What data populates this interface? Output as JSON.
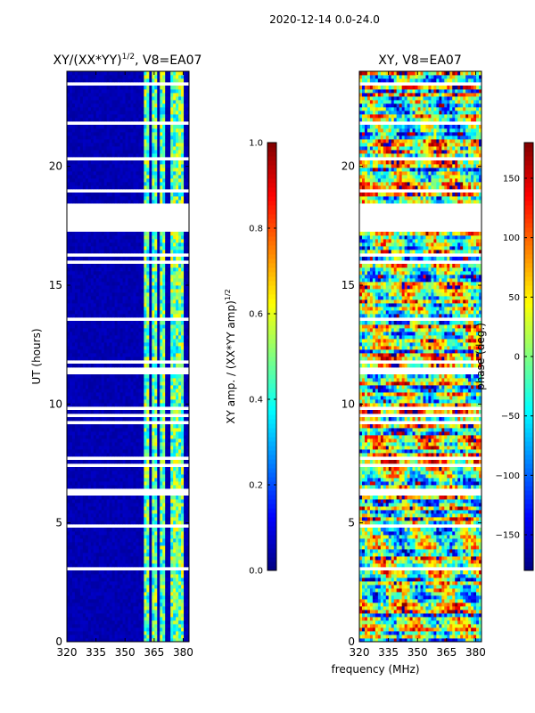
{
  "figure": {
    "suptitle": "2020-12-14 0.0-24.0",
    "xlabel": "frequency (MHz)"
  },
  "chart_data": [
    {
      "type": "heatmap",
      "title": "XY/(XX*YY)",
      "title_sup": "1/2",
      "title_suffix": ", V8=EA07",
      "xlabel": "",
      "ylabel": "UT (hours)",
      "xlim": [
        320,
        383
      ],
      "ylim": [
        0,
        24
      ],
      "x_ticks": [
        320,
        335,
        350,
        365,
        380
      ],
      "y_ticks": [
        0,
        5,
        10,
        15,
        20
      ],
      "colorbar": {
        "label": "XY amp. / (XX*YY amp)",
        "label_sup": "1/2",
        "range": [
          0.0,
          1.0
        ],
        "ticks": [
          "0.0",
          "0.2",
          "0.4",
          "0.6",
          "0.8",
          "1.0"
        ]
      },
      "background_value": 0.05,
      "bright_columns_mhz": [
        [
          360,
          363
        ],
        [
          364,
          367
        ],
        [
          368,
          370
        ],
        [
          374,
          377
        ],
        [
          378,
          380
        ]
      ],
      "bright_column_value_range": [
        0.3,
        0.65
      ],
      "gaps_ut_hours": [
        [
          17.3,
          18.4
        ],
        [
          11.2,
          11.6
        ],
        [
          6.2,
          6.4
        ]
      ]
    },
    {
      "type": "heatmap",
      "title": "XY, V8=EA07",
      "xlabel": "",
      "ylabel": "",
      "xlim": [
        320,
        383
      ],
      "ylim": [
        0,
        24
      ],
      "x_ticks": [
        320,
        335,
        350,
        365,
        380
      ],
      "y_ticks": [
        0,
        5,
        10,
        15,
        20
      ],
      "colorbar": {
        "label": "phase (deg.)",
        "range": [
          -180,
          180
        ],
        "ticks": [
          "-150",
          "-100",
          "-50",
          "0",
          "50",
          "100",
          "150"
        ]
      },
      "value_range": [
        -180,
        180
      ],
      "gaps_ut_hours": [
        [
          17.3,
          18.4
        ],
        [
          11.2,
          11.6
        ],
        [
          6.2,
          6.4
        ]
      ]
    }
  ],
  "colors": {
    "axis": "#000000",
    "gap": "#ffffff"
  }
}
